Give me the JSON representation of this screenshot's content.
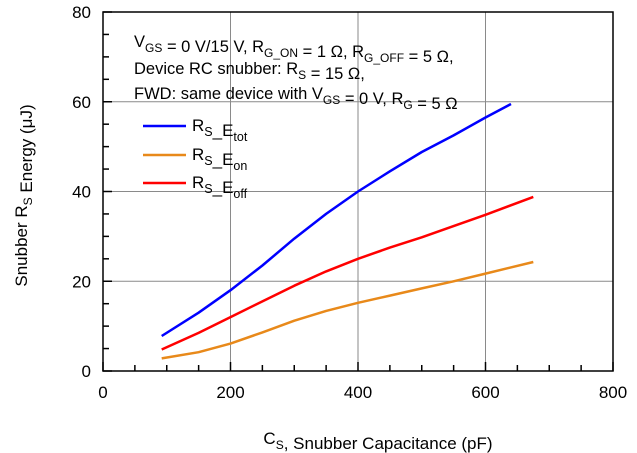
{
  "chart_data": {
    "type": "line",
    "xlabel": {
      "main": "C",
      "sub": "S",
      "rest": ", Snubber Capacitance (pF)"
    },
    "ylabel": {
      "main": "Snubber R",
      "sub": "S",
      "rest": " Energy (μJ)"
    },
    "xlim": [
      0,
      800
    ],
    "ylim": [
      0,
      80
    ],
    "x_ticks": [
      0,
      200,
      400,
      600,
      800
    ],
    "y_ticks": [
      0,
      20,
      40,
      60,
      80
    ],
    "grid": true,
    "annotation_lines": [
      [
        {
          "t": "V",
          "s": null
        },
        {
          "t": "GS",
          "s": "sub"
        },
        {
          "t": " = 0 V/15 V, R",
          "s": null
        },
        {
          "t": "G_ON",
          "s": "sub"
        },
        {
          "t": " = 1 Ω, R",
          "s": null
        },
        {
          "t": "G_OFF",
          "s": "sub"
        },
        {
          "t": " = 5 Ω,",
          "s": null
        }
      ],
      [
        {
          "t": "Device RC snubber: R",
          "s": null
        },
        {
          "t": "S",
          "s": "sub"
        },
        {
          "t": " = 15 Ω,",
          "s": null
        }
      ],
      [
        {
          "t": "FWD: same device with V",
          "s": null
        },
        {
          "t": "GS",
          "s": "sub"
        },
        {
          "t": " = 0 V, R",
          "s": null
        },
        {
          "t": "G",
          "s": "sub"
        },
        {
          "t": " = 5 Ω",
          "s": null
        }
      ]
    ],
    "legend_position": "top-left",
    "series": [
      {
        "name": "RS_Etot",
        "legend": [
          {
            "t": "R",
            "s": null
          },
          {
            "t": "S",
            "s": "sub"
          },
          {
            "t": "_E",
            "s": null
          },
          {
            "t": "tot",
            "s": "sub"
          }
        ],
        "color": "#0000ff",
        "x": [
          92,
          150,
          200,
          250,
          300,
          350,
          400,
          450,
          500,
          550,
          600,
          640
        ],
        "y": [
          7.8,
          13,
          18,
          23.5,
          29.5,
          35,
          40,
          44.5,
          48.8,
          52.5,
          56.5,
          59.5
        ]
      },
      {
        "name": "RS_Eon",
        "legend": [
          {
            "t": "R",
            "s": null
          },
          {
            "t": "S",
            "s": "sub"
          },
          {
            "t": "_E",
            "s": null
          },
          {
            "t": "on",
            "s": "sub"
          }
        ],
        "color": "#e8891a",
        "x": [
          92,
          150,
          200,
          250,
          300,
          350,
          400,
          450,
          500,
          550,
          600,
          675
        ],
        "y": [
          2.8,
          4.2,
          6.1,
          8.6,
          11.2,
          13.4,
          15.2,
          16.8,
          18.4,
          20,
          21.7,
          24.3
        ]
      },
      {
        "name": "RS_Eoff",
        "legend": [
          {
            "t": "R",
            "s": null
          },
          {
            "t": "S",
            "s": "sub"
          },
          {
            "t": "_E",
            "s": null
          },
          {
            "t": "off",
            "s": "sub"
          }
        ],
        "color": "#ff0000",
        "x": [
          92,
          150,
          200,
          250,
          300,
          350,
          400,
          450,
          500,
          550,
          600,
          675
        ],
        "y": [
          4.8,
          8.5,
          12,
          15.5,
          19,
          22.2,
          25,
          27.5,
          29.8,
          32.3,
          34.8,
          38.8
        ]
      }
    ]
  }
}
